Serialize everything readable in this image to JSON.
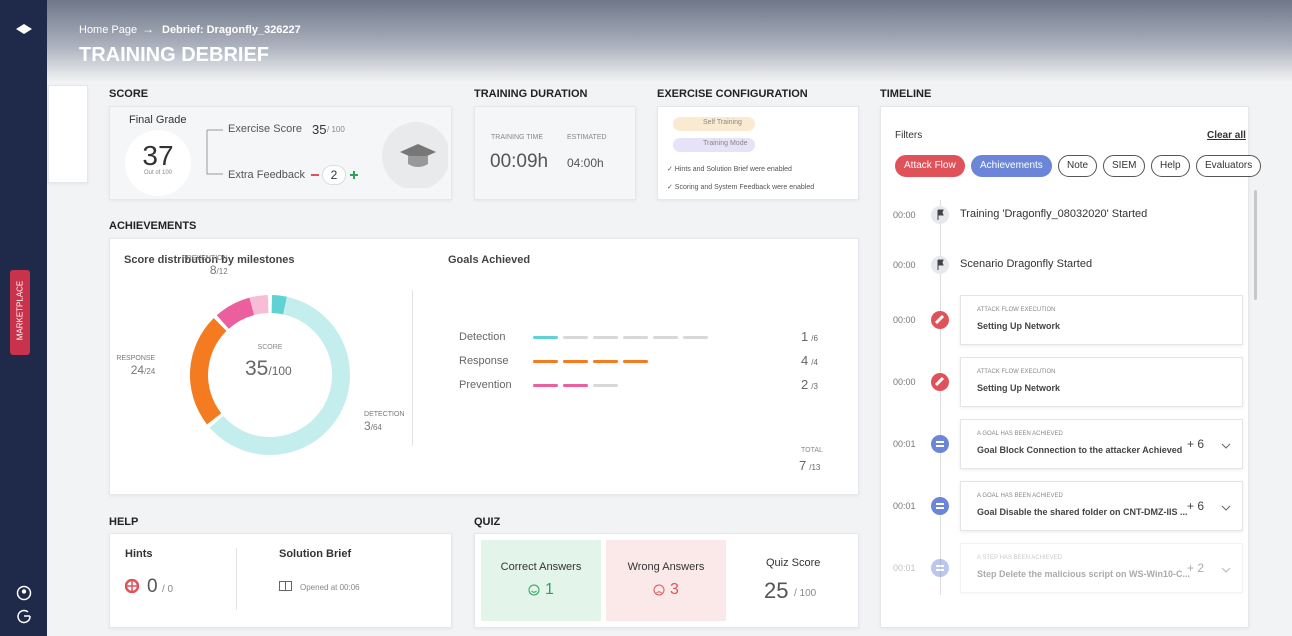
{
  "header": {
    "breadcrumb_home": "Home Page",
    "breadcrumb_current": "Debrief: Dragonfly_326227",
    "title": "TRAINING DEBRIEF"
  },
  "sidebar": {
    "marketplace": "MARKETPLACE"
  },
  "score": {
    "heading": "SCORE",
    "final_grade_label": "Final Grade",
    "final_grade": "37",
    "out_of": "Out of 100",
    "exercise_score_label": "Exercise Score",
    "exercise_score": "35",
    "exercise_score_max": "/ 100",
    "extra_feedback_label": "Extra Feedback",
    "extra_feedback": "2"
  },
  "duration": {
    "heading": "TRAINING DURATION",
    "training_time_label": "TRAINING TIME",
    "training_time": "00:09h",
    "estimated_label": "ESTIMATED",
    "estimated": "04:00h"
  },
  "configuration": {
    "heading": "EXERCISE CONFIGURATION",
    "tags": [
      "Self Training",
      "Training Mode"
    ],
    "notes": [
      "✓ Hints and Solution Brief were enabled",
      "✓ Scoring and System Feedback were enabled"
    ]
  },
  "achievements": {
    "heading": "ACHIEVEMENTS",
    "distribution": {
      "type": "donut",
      "title": "Score distribution by milestones",
      "center_label": "SCORE",
      "center_value": "35",
      "center_max": "/100",
      "series": [
        {
          "name": "DETECTION",
          "color": "#5fd3d3",
          "light": "#c4eeee",
          "score": 3,
          "max": {
            "value": 64,
            "label": "/64"
          }
        },
        {
          "name": "RESPONSE",
          "color": "#f47b20",
          "light": "#fbd2b0",
          "score": 24,
          "max": {
            "value": 24,
            "label": "/24"
          }
        },
        {
          "name": "PREVENTION",
          "color": "#ec5f9e",
          "light": "#f7bdd6",
          "score": 8,
          "max": {
            "value": 12,
            "label": "/12"
          }
        }
      ]
    },
    "goals": {
      "title": "Goals Achieved",
      "rows": [
        {
          "name": "Detection",
          "color": "#5fd3d3",
          "achieved": 1,
          "total": {
            "value": 6,
            "label": "/6"
          }
        },
        {
          "name": "Response",
          "color": "#f47b20",
          "achieved": 4,
          "total": {
            "value": 4,
            "label": "/4"
          }
        },
        {
          "name": "Prevention",
          "color": "#ec5f9e",
          "achieved": 2,
          "total": {
            "value": 3,
            "label": "/3"
          }
        }
      ],
      "total_label": "TOTAL",
      "total": "7",
      "total_max": "/13"
    }
  },
  "help": {
    "heading": "HELP",
    "hints_label": "Hints",
    "hints": "0",
    "hints_max": "/ 0",
    "solution_label": "Solution Brief",
    "solution_opened": "Opened at 00:06"
  },
  "quiz": {
    "heading": "QUIZ",
    "correct_label": "Correct Answers",
    "correct": "1",
    "wrong_label": "Wrong Answers",
    "wrong": "3",
    "score_label": "Quiz Score",
    "score": "25",
    "score_max": "/ 100"
  },
  "timeline": {
    "heading": "TIMELINE",
    "filters_label": "Filters",
    "clear_all": "Clear all",
    "filters": [
      {
        "name": "Attack Flow",
        "color": "#e0525a"
      },
      {
        "name": "Achievements",
        "color": "#6b85d8"
      },
      {
        "name": "Note"
      },
      {
        "name": "SIEM"
      },
      {
        "name": "Help"
      },
      {
        "name": "Evaluators"
      }
    ],
    "events": [
      {
        "time": "00:00",
        "kind": "flag",
        "text": "Training 'Dragonfly_08032020' Started"
      },
      {
        "time": "00:00",
        "kind": "flag",
        "text": "Scenario Dragonfly Started"
      },
      {
        "time": "00:00",
        "kind": "attack",
        "category": "ATTACK FLOW EXECUTION",
        "text": "Setting Up Network"
      },
      {
        "time": "00:00",
        "kind": "attack",
        "category": "ATTACK FLOW EXECUTION",
        "text": "Setting Up Network"
      },
      {
        "time": "00:01",
        "kind": "goal",
        "category": "A GOAL HAS BEEN ACHIEVED",
        "text": "Goal Block Connection to the attacker Achieved",
        "points": "+ 6"
      },
      {
        "time": "00:01",
        "kind": "goal",
        "category": "A GOAL HAS BEEN ACHIEVED",
        "text": "Goal Disable the shared folder on CNT-DMZ-IIS ...",
        "points": "+ 6"
      },
      {
        "time": "00:01",
        "kind": "goal",
        "category": "A STEP HAS BEEN ACHIEVED",
        "text": "Step Delete the malicious script on WS-Win10-C...",
        "points": "+ 2",
        "faded": true
      }
    ]
  }
}
